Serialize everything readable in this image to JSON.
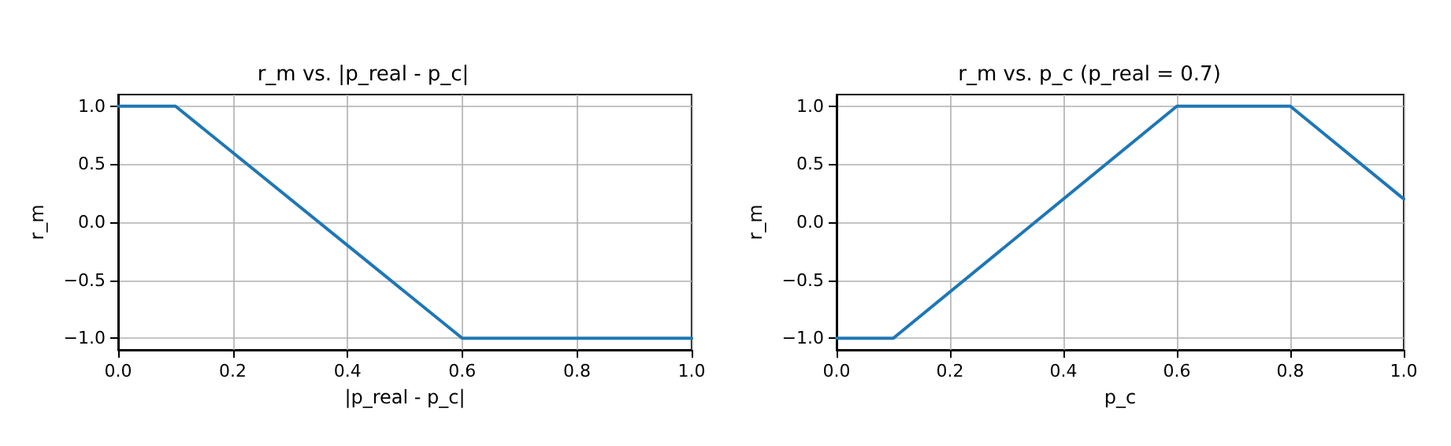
{
  "chart_data": [
    {
      "type": "line",
      "title": "r_m vs. |p_real - p_c|",
      "xlabel": "|p_real - p_c|",
      "ylabel": "r_m",
      "x": [
        0,
        0.1,
        0.6,
        1
      ],
      "series": [
        {
          "color": "#1f77b4",
          "values": [
            1,
            1,
            -1,
            -1
          ]
        }
      ],
      "xlim": [
        0,
        1
      ],
      "ylim": [
        -1.1,
        1.1
      ],
      "xticks": [
        {
          "value": 0,
          "label": "0.0"
        },
        {
          "value": 0.2,
          "label": "0.2"
        },
        {
          "value": 0.4,
          "label": "0.4"
        },
        {
          "value": 0.6,
          "label": "0.6"
        },
        {
          "value": 0.8,
          "label": "0.8"
        },
        {
          "value": 1,
          "label": "1.0"
        }
      ],
      "yticks": [
        {
          "value": -1,
          "label": "−1.0"
        },
        {
          "value": -0.5,
          "label": "−0.5"
        },
        {
          "value": 0,
          "label": "0.0"
        },
        {
          "value": 0.5,
          "label": "0.5"
        },
        {
          "value": 1,
          "label": "1.0"
        }
      ],
      "grid": true
    },
    {
      "type": "line",
      "title": "r_m vs. p_c (p_real = 0.7)",
      "xlabel": "p_c",
      "ylabel": "r_m",
      "x": [
        0,
        0.1,
        0.6,
        0.8,
        1
      ],
      "series": [
        {
          "color": "#1f77b4",
          "values": [
            -1,
            -1,
            1,
            1,
            0.2
          ]
        }
      ],
      "xlim": [
        0,
        1
      ],
      "ylim": [
        -1.1,
        1.1
      ],
      "xticks": [
        {
          "value": 0,
          "label": "0.0"
        },
        {
          "value": 0.2,
          "label": "0.2"
        },
        {
          "value": 0.4,
          "label": "0.4"
        },
        {
          "value": 0.6,
          "label": "0.6"
        },
        {
          "value": 0.8,
          "label": "0.8"
        },
        {
          "value": 1,
          "label": "1.0"
        }
      ],
      "yticks": [
        {
          "value": -1,
          "label": "−1.0"
        },
        {
          "value": -0.5,
          "label": "−0.5"
        },
        {
          "value": 0,
          "label": "0.0"
        },
        {
          "value": 0.5,
          "label": "0.5"
        },
        {
          "value": 1,
          "label": "1.0"
        }
      ],
      "grid": true
    }
  ]
}
